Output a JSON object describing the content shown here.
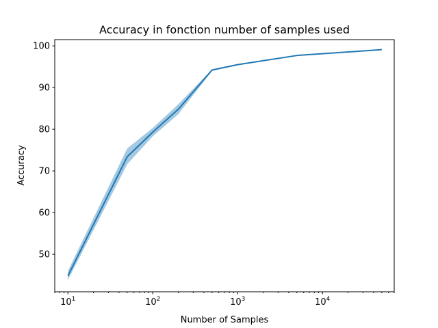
{
  "chart_data": {
    "type": "line",
    "title": "Accuracy in fonction number of samples used",
    "xlabel": "Number of Samples",
    "ylabel": "Accuracy",
    "xscale": "log",
    "xlim": [
      7,
      70000
    ],
    "ylim": [
      41,
      101.5
    ],
    "grid": false,
    "x_ticks": [
      {
        "value": 10,
        "base": "10",
        "exp": "1"
      },
      {
        "value": 100,
        "base": "10",
        "exp": "2"
      },
      {
        "value": 1000,
        "base": "10",
        "exp": "3"
      },
      {
        "value": 10000,
        "base": "10",
        "exp": "4"
      }
    ],
    "y_ticks": [
      50,
      60,
      70,
      80,
      90,
      100
    ],
    "series": [
      {
        "color": "#1f77b4",
        "x": [
          10,
          50,
          100,
          200,
          500,
          1000,
          5000,
          50000
        ],
        "y": [
          44.8,
          73.4,
          79.3,
          84.8,
          94.2,
          95.5,
          97.7,
          99.1
        ],
        "y_low": [
          43.8,
          71.6,
          78.3,
          83.6,
          94.0,
          95.4,
          97.6,
          99.0
        ],
        "y_high": [
          46.0,
          75.4,
          80.3,
          86.0,
          94.4,
          95.6,
          97.8,
          99.2
        ]
      }
    ]
  }
}
